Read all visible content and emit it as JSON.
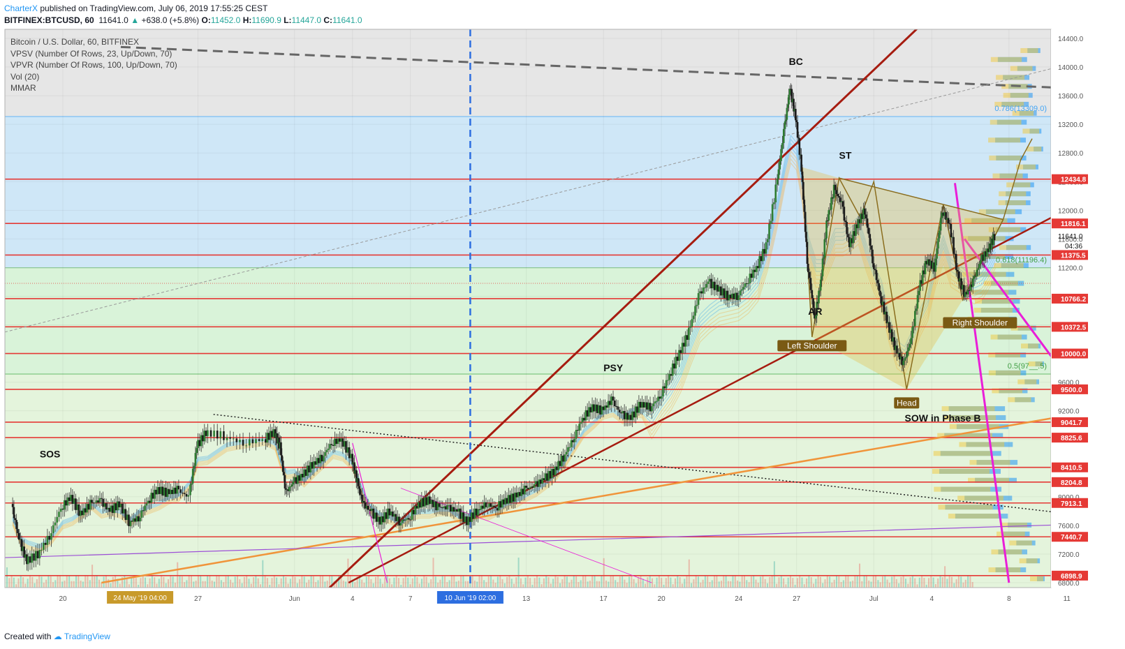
{
  "header": {
    "author": "CharterX",
    "published": "published on TradingView.com, July 06, 2019 17:55:25 CEST",
    "symbol": "BITFINEX:BTCUSD, 60",
    "last": "11641.0",
    "change": "+638.0 (+5.8%)",
    "o_label": "O:",
    "o": "11452.0",
    "h_label": "H:",
    "h": "11690.9",
    "l_label": "L:",
    "l": "11447.0",
    "c_label": "C:",
    "c": "11641.0"
  },
  "legend": {
    "title": "Bitcoin / U.S. Dollar, 60, BITFINEX",
    "vpsv": "VPSV (Number Of Rows, 23, Up/Down, 70)",
    "vpvr": "VPVR (Number Of Rows, 100, Up/Down, 70)",
    "vol": "Vol (20)",
    "mmar": "MMAR"
  },
  "footer": {
    "created": "Created with",
    "brand": "TradingView"
  },
  "colors": {
    "up": "#26a69a",
    "down": "#ef5350",
    "red_line": "#e53935",
    "dark_red": "#a61c10",
    "orange": "#f0943a",
    "magenta": "#e91ed8",
    "olive": "#8a6d1e",
    "blue_zone": "#cfe7f7",
    "green_zone": "#d9f3d9",
    "gray_zone": "#e6e6e6",
    "tv_blue": "#2196f3"
  },
  "chart_data": {
    "type": "candlestick",
    "ylim": [
      6800,
      14600
    ],
    "y_ticks": [
      6800,
      7200,
      7600,
      8000,
      8400,
      8800,
      9200,
      9600,
      10000,
      10400,
      10800,
      11200,
      11600,
      12000,
      12400,
      12800,
      13200,
      13600,
      14000,
      14400
    ],
    "y_tick_labels": [
      "6800.0",
      "7200.0",
      "7600.0",
      "8000.0",
      "8400.0",
      "8800.0",
      "9200.0",
      "9600.0",
      "10000.0",
      "10400.0",
      "10800.0",
      "11200.0",
      "11600.0",
      "12000.0",
      "12400.0",
      "12800.0",
      "13200.0",
      "13600.0",
      "14000.0",
      "14400.0"
    ],
    "x_ticks": [
      {
        "day": 0,
        "label": "20"
      },
      {
        "day": 7,
        "label": "27"
      },
      {
        "day": 12,
        "label": "Jun"
      },
      {
        "day": 15,
        "label": "4"
      },
      {
        "day": 18,
        "label": "7"
      },
      {
        "day": 24,
        "label": "13"
      },
      {
        "day": 28,
        "label": "17"
      },
      {
        "day": 31,
        "label": "20"
      },
      {
        "day": 35,
        "label": "24"
      },
      {
        "day": 38,
        "label": "27"
      },
      {
        "day": 42,
        "label": "Jul"
      },
      {
        "day": 45,
        "label": "4"
      },
      {
        "day": 49,
        "label": "8"
      },
      {
        "day": 52,
        "label": "11"
      }
    ],
    "marker_dates": [
      {
        "day": 4,
        "label": "24 May '19   04:00"
      },
      {
        "day": 21.1,
        "label": "10 Jun '19   02:00"
      }
    ],
    "horizontal_levels": [
      12434.8,
      11816.1,
      11375.5,
      10766.2,
      10372.5,
      10000.0,
      9500.0,
      9041.7,
      8825.6,
      8410.5,
      8204.8,
      7913.1,
      7440.7,
      6898.9
    ],
    "level_labels": [
      "12434.8",
      "11816.1",
      "11375.5",
      "10766.2",
      "10372.5",
      "10000.0",
      "9500.0",
      "9041.7",
      "8825.6",
      "8410.5",
      "8204.8",
      "7913.1",
      "7440.7",
      "6898.9"
    ],
    "current_price": {
      "value": 11641.0,
      "label": "11641.0",
      "countdown": "04:36"
    },
    "fib_levels": [
      {
        "ratio": "0.786",
        "value": 13309.0,
        "label": "0.786(13309.0)"
      },
      {
        "ratio": "0.618",
        "value": 11196.4,
        "label": "0.618(11196.4)"
      },
      {
        "ratio": "0.5",
        "value": 9713.5,
        "label": "0.5(97__.5)"
      }
    ],
    "price_path": [
      [
        -2.6,
        7900
      ],
      [
        -2.2,
        7400
      ],
      [
        -1.8,
        7100
      ],
      [
        -1.2,
        7200
      ],
      [
        -0.6,
        7450
      ],
      [
        0,
        7850
      ],
      [
        0.5,
        8000
      ],
      [
        1,
        7750
      ],
      [
        1.5,
        7900
      ],
      [
        2,
        7950
      ],
      [
        2.5,
        7800
      ],
      [
        3,
        7900
      ],
      [
        3.5,
        7650
      ],
      [
        4,
        7700
      ],
      [
        4.5,
        7950
      ],
      [
        5,
        8100
      ],
      [
        5.5,
        8050
      ],
      [
        6,
        8100
      ],
      [
        6.6,
        8000
      ],
      [
        7,
        8700
      ],
      [
        7.5,
        8900
      ],
      [
        8.5,
        8850
      ],
      [
        9.5,
        8750
      ],
      [
        10.5,
        8800
      ],
      [
        11,
        8900
      ],
      [
        11.3,
        8700
      ],
      [
        11.6,
        8050
      ],
      [
        12,
        8200
      ],
      [
        12.5,
        8300
      ],
      [
        13,
        8450
      ],
      [
        13.5,
        8550
      ],
      [
        14,
        8750
      ],
      [
        14.5,
        8800
      ],
      [
        15,
        8550
      ],
      [
        15.3,
        8200
      ],
      [
        15.6,
        7900
      ],
      [
        16,
        7800
      ],
      [
        16.5,
        7650
      ],
      [
        17,
        7800
      ],
      [
        17.5,
        7650
      ],
      [
        18,
        7700
      ],
      [
        18.5,
        7900
      ],
      [
        19,
        7950
      ],
      [
        19.5,
        7850
      ],
      [
        20,
        7850
      ],
      [
        20.5,
        7800
      ],
      [
        21,
        7650
      ],
      [
        21.5,
        7800
      ],
      [
        22,
        7900
      ],
      [
        22.5,
        7850
      ],
      [
        23,
        7950
      ],
      [
        23.5,
        8000
      ],
      [
        24,
        8100
      ],
      [
        24.5,
        8150
      ],
      [
        25,
        8250
      ],
      [
        25.5,
        8350
      ],
      [
        26,
        8550
      ],
      [
        26.5,
        8800
      ],
      [
        27,
        9100
      ],
      [
        27.5,
        9250
      ],
      [
        28,
        9200
      ],
      [
        28.5,
        9350
      ],
      [
        29,
        9150
      ],
      [
        29.5,
        9100
      ],
      [
        30,
        9300
      ],
      [
        30.5,
        9250
      ],
      [
        31,
        9400
      ],
      [
        31.5,
        9700
      ],
      [
        32,
        10000
      ],
      [
        32.5,
        10300
      ],
      [
        33,
        10800
      ],
      [
        33.5,
        11000
      ],
      [
        34,
        10900
      ],
      [
        34.5,
        10800
      ],
      [
        35,
        10800
      ],
      [
        35.5,
        11000
      ],
      [
        36,
        11200
      ],
      [
        36.5,
        11500
      ],
      [
        37,
        12300
      ],
      [
        37.4,
        13100
      ],
      [
        37.7,
        13700
      ],
      [
        38,
        13300
      ],
      [
        38.3,
        12600
      ],
      [
        38.6,
        11300
      ],
      [
        39,
        10500
      ],
      [
        39.3,
        11000
      ],
      [
        39.6,
        11800
      ],
      [
        40,
        12300
      ],
      [
        40.4,
        12100
      ],
      [
        40.8,
        11500
      ],
      [
        41.2,
        11800
      ],
      [
        41.6,
        12000
      ],
      [
        42,
        11300
      ],
      [
        42.4,
        10800
      ],
      [
        42.8,
        10400
      ],
      [
        43.2,
        10050
      ],
      [
        43.6,
        9850
      ],
      [
        44,
        10200
      ],
      [
        44.4,
        10900
      ],
      [
        44.8,
        11300
      ],
      [
        45.2,
        11200
      ],
      [
        45.6,
        12000
      ],
      [
        46,
        11800
      ],
      [
        46.4,
        11100
      ],
      [
        46.8,
        10800
      ],
      [
        47.2,
        11000
      ],
      [
        47.6,
        11300
      ],
      [
        48,
        11450
      ],
      [
        48.3,
        11640
      ]
    ],
    "labels": [
      {
        "text": "SOS",
        "day": -1.2,
        "value": 8550
      },
      {
        "text": "PSY",
        "day": 28,
        "value": 9750
      },
      {
        "text": "BC",
        "day": 37.6,
        "value": 14030
      },
      {
        "text": "ST",
        "day": 40.2,
        "value": 12720
      },
      {
        "text": "AR",
        "day": 38.6,
        "value": 10540
      },
      {
        "text": "SOW in Phase B",
        "day": 43.6,
        "value": 9050
      }
    ],
    "badges": [
      {
        "text": "Left Shoulder",
        "day": 38.8,
        "value": 10100
      },
      {
        "text": "Head",
        "day": 43.7,
        "value": 9300
      },
      {
        "text": "Right Shoulder",
        "day": 47.5,
        "value": 10420
      }
    ]
  }
}
